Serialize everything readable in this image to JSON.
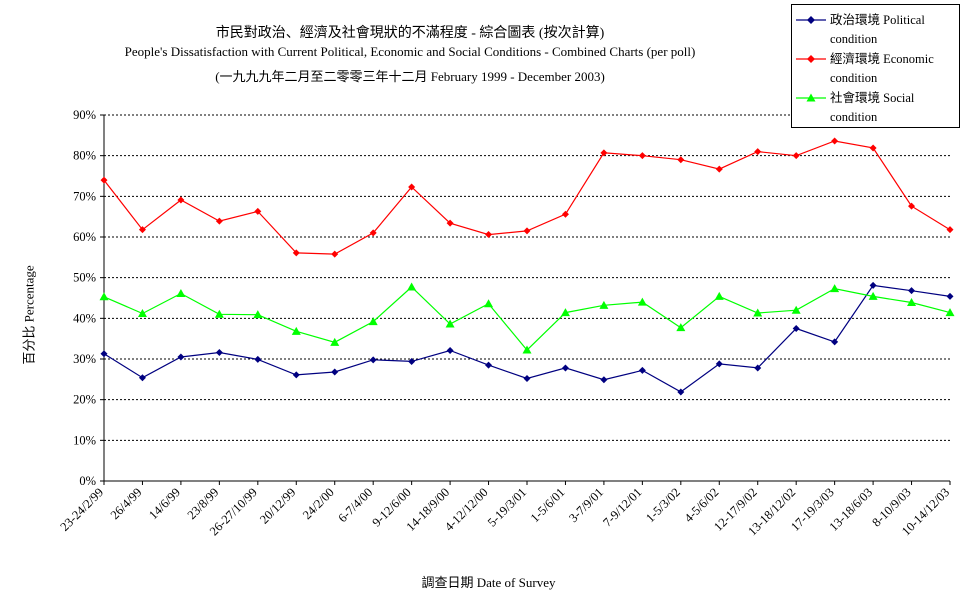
{
  "chart_data": {
    "type": "line",
    "title": "市民對政治、經濟及社會現狀的不滿程度 - 綜合圖表 (按次計算)",
    "subtitle": "People's Dissatisfaction with Current Political, Economic and Social Conditions - Combined Charts  (per poll)",
    "subtitle2": "(一九九九年二月至二零零三年十二月 February 1999 - December 2003)",
    "xlabel": "調查日期 Date of Survey",
    "ylabel": "百分比 Percentage",
    "ylim": [
      0,
      90
    ],
    "yticks": [
      "0%",
      "10%",
      "20%",
      "30%",
      "40%",
      "50%",
      "60%",
      "70%",
      "80%",
      "90%"
    ],
    "grid": "horizontal dotted",
    "legend_position": "top-right",
    "categories": [
      "23-24/2/99",
      "26/4/99",
      "14/6/99",
      "23/8/99",
      "26-27/10/99",
      "20/12/99",
      "24/2/00",
      "6-7/4/00",
      "9-12/6/00",
      "14-18/9/00",
      "4-12/12/00",
      "5-19/3/01",
      "1-5/6/01",
      "3-7/9/01",
      "7-9/12/01",
      "1-5/3/02",
      "4-5/6/02",
      "12-17/9/02",
      "13-18/12/02",
      "17-19/3/03",
      "13-18/6/03",
      "8-10/9/03",
      "10-14/12/03"
    ],
    "series": [
      {
        "name": "政治環境 Political condition",
        "color": "#000080",
        "marker": "diamond",
        "values": [
          31.3,
          25.4,
          30.5,
          31.6,
          29.9,
          26.1,
          26.8,
          29.8,
          29.4,
          32.1,
          28.5,
          25.2,
          27.8,
          24.9,
          27.2,
          21.9,
          28.8,
          27.8,
          37.5,
          34.2,
          48.1,
          46.8,
          45.4
        ]
      },
      {
        "name": "經濟環境 Economic condition",
        "color": "#ff0000",
        "marker": "diamond",
        "values": [
          74.0,
          61.8,
          69.1,
          63.9,
          66.3,
          56.1,
          55.8,
          61.0,
          72.3,
          63.4,
          60.6,
          61.5,
          65.6,
          80.7,
          80.0,
          79.0,
          76.7,
          81.0,
          80.0,
          83.6,
          81.9,
          67.6,
          61.8
        ]
      },
      {
        "name": "社會環境 Social condition",
        "color": "#00ff00",
        "marker": "triangle",
        "values": [
          45.3,
          41.2,
          46.1,
          41.0,
          40.9,
          36.8,
          34.1,
          39.2,
          47.7,
          38.6,
          43.6,
          32.2,
          41.4,
          43.2,
          44.0,
          37.7,
          45.4,
          41.3,
          42.0,
          47.3,
          45.4,
          43.9,
          41.4
        ]
      }
    ]
  }
}
